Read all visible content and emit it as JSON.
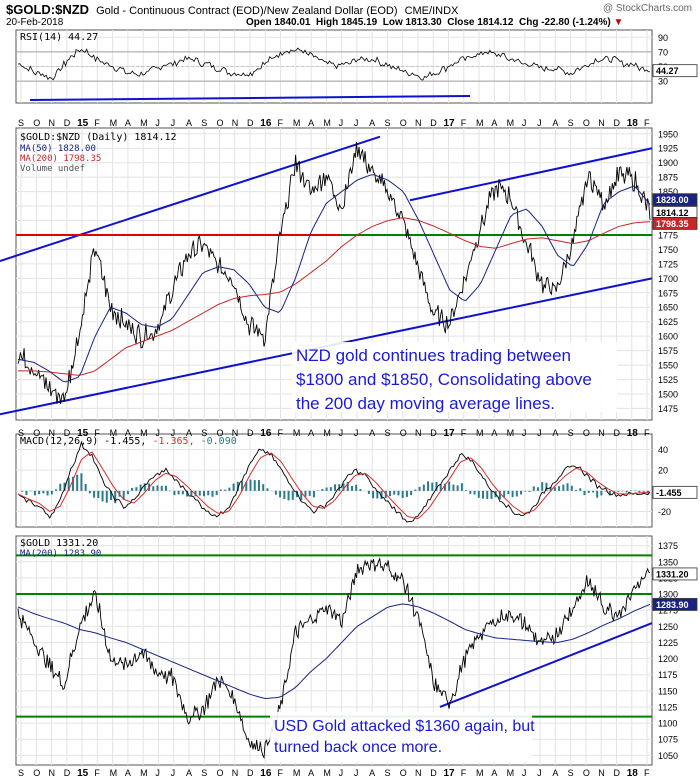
{
  "header": {
    "symbol": "$GOLD:$NZD",
    "description": "Gold - Continuous Contract (EOD)/New Zealand Dollar (EOD)",
    "exchange": "CME/INDX",
    "date": "20-Feb-2018",
    "quote": {
      "open": "Open 1840.01",
      "high": "High 1845.19",
      "low": "Low 1813.30",
      "close": "Close 1814.12",
      "chg": "Chg -22.80 (-1.24%)"
    },
    "watermark": "@ StockCharts.com"
  },
  "colors": {
    "price": "#000000",
    "ma50": "#1a237e",
    "ma200": "#c62828",
    "rsi": "#000000",
    "trend": "#1010d0",
    "support_red": "#e00000",
    "support_green": "#008000",
    "macd_hist": "#2a7b8c",
    "annotation": "#1a1ad6"
  },
  "chart_data": [
    {
      "type": "line",
      "panel": "rsi",
      "title": "RSI(14) 44.27",
      "ylim": [
        0,
        100
      ],
      "yticks": [
        30,
        50,
        70,
        90
      ],
      "current_label": "44.27",
      "series": [
        {
          "name": "RSI(14)",
          "values": [
            55,
            48,
            42,
            38,
            35,
            48,
            62,
            72,
            70,
            60,
            55,
            50,
            45,
            40,
            38,
            42,
            48,
            52,
            55,
            58,
            60,
            56,
            52,
            48,
            44,
            40,
            38,
            42,
            50,
            58,
            66,
            72,
            74,
            70,
            64,
            58,
            52,
            50,
            54,
            58,
            62,
            60,
            55,
            50,
            46,
            42,
            38,
            36,
            40,
            46,
            52,
            58,
            62,
            66,
            70,
            68,
            64,
            60,
            56,
            52,
            50,
            48,
            46,
            44,
            42,
            48,
            54,
            60,
            62,
            58,
            55,
            52,
            48,
            44
          ]
        }
      ]
    },
    {
      "type": "line",
      "panel": "price-nzd",
      "title": "$GOLD:$NZD (Daily) 1814.12",
      "legend": [
        "$GOLD:$NZD (Daily) 1814.12",
        "MA(50) 1828.00",
        "MA(200) 1798.35",
        "Volume undef"
      ],
      "ylim": [
        1455,
        1960
      ],
      "yticks": [
        1475,
        1500,
        1525,
        1550,
        1575,
        1600,
        1625,
        1650,
        1675,
        1700,
        1725,
        1750,
        1775,
        1800,
        1825,
        1850,
        1875,
        1900,
        1925,
        1950
      ],
      "price_labels": [
        "1828.00",
        "1814.12",
        "1798.35"
      ],
      "x": [
        "Sep 2014",
        "Oct 2014",
        "Nov 2014",
        "Dec 2014",
        "Jan 2015",
        "Feb 2015",
        "Mar 2015",
        "Apr 2015",
        "May 2015",
        "Jun 2015",
        "Jul 2015",
        "Aug 2015",
        "Sep 2015",
        "Oct 2015",
        "Nov 2015",
        "Dec 2015",
        "Jan 2016",
        "Feb 2016",
        "Mar 2016",
        "Apr 2016",
        "May 2016",
        "Jun 2016",
        "Jul 2016",
        "Aug 2016",
        "Sep 2016",
        "Oct 2016",
        "Nov 2016",
        "Dec 2016",
        "Jan 2017",
        "Feb 2017",
        "Mar 2017",
        "Apr 2017",
        "May 2017",
        "Jun 2017",
        "Jul 2017",
        "Aug 2017",
        "Sep 2017",
        "Oct 2017",
        "Nov 2017",
        "Dec 2017",
        "Jan 2018",
        "Feb 2018"
      ],
      "series": [
        {
          "name": "$GOLD:$NZD",
          "values": [
            1570,
            1545,
            1510,
            1490,
            1610,
            1755,
            1650,
            1620,
            1600,
            1610,
            1680,
            1740,
            1760,
            1720,
            1700,
            1620,
            1600,
            1770,
            1900,
            1850,
            1880,
            1820,
            1930,
            1880,
            1850,
            1800,
            1720,
            1640,
            1620,
            1700,
            1790,
            1860,
            1840,
            1760,
            1690,
            1680,
            1760,
            1880,
            1830,
            1880,
            1870,
            1814
          ]
        },
        {
          "name": "MA(50) 1828.00",
          "values": [
            1560,
            1555,
            1540,
            1520,
            1530,
            1600,
            1650,
            1640,
            1620,
            1615,
            1630,
            1670,
            1710,
            1720,
            1715,
            1690,
            1650,
            1640,
            1700,
            1780,
            1830,
            1850,
            1870,
            1880,
            1870,
            1850,
            1800,
            1740,
            1680,
            1660,
            1690,
            1750,
            1810,
            1820,
            1790,
            1740,
            1720,
            1760,
            1830,
            1850,
            1860,
            1828
          ]
        },
        {
          "name": "MA(200) 1798.35",
          "values": [
            1540,
            1540,
            1538,
            1535,
            1532,
            1540,
            1560,
            1580,
            1590,
            1600,
            1610,
            1625,
            1640,
            1655,
            1665,
            1670,
            1672,
            1676,
            1690,
            1710,
            1730,
            1755,
            1775,
            1790,
            1800,
            1805,
            1800,
            1790,
            1778,
            1765,
            1755,
            1752,
            1760,
            1768,
            1770,
            1765,
            1760,
            1765,
            1778,
            1790,
            1796,
            1798
          ]
        }
      ],
      "annotation": [
        "NZD gold continues trading between",
        "$1800 and $1850, Consolidating above",
        "the 200 day moving average lines."
      ],
      "support_level": 1775
    },
    {
      "type": "line",
      "panel": "macd",
      "title": "MACD(12,26,9) -1.455, -1.365, -0.090",
      "legend": [
        "MACD(12,26,9) -1.455",
        "-1.365",
        "-0.090"
      ],
      "ylim": [
        -35,
        55
      ],
      "yticks": [
        -20,
        0,
        20,
        40
      ],
      "current_label": "-1.455",
      "series": [
        {
          "name": "MACD(12,26,9) -1.455",
          "values": [
            -5,
            -10,
            -15,
            -25,
            -10,
            20,
            45,
            35,
            10,
            -5,
            -15,
            -10,
            5,
            15,
            20,
            10,
            0,
            -10,
            -20,
            -25,
            -15,
            5,
            25,
            40,
            35,
            20,
            5,
            -10,
            -20,
            -15,
            -5,
            10,
            20,
            15,
            0,
            -10,
            -20,
            -30,
            -25,
            -10,
            5,
            20,
            35,
            30,
            15,
            0,
            -10,
            -20,
            -25,
            -15,
            0,
            10,
            20,
            25,
            15,
            5,
            0,
            -5,
            -3,
            -2,
            -1
          ]
        },
        {
          "name": "-1.365",
          "values": [
            -3,
            -8,
            -12,
            -20,
            -15,
            5,
            30,
            38,
            22,
            5,
            -8,
            -12,
            -2,
            10,
            17,
            14,
            5,
            -5,
            -15,
            -22,
            -20,
            -5,
            15,
            32,
            37,
            28,
            12,
            -3,
            -15,
            -17,
            -10,
            3,
            15,
            17,
            8,
            -4,
            -15,
            -25,
            -27,
            -17,
            -2,
            12,
            28,
            32,
            22,
            7,
            -5,
            -15,
            -22,
            -19,
            -7,
            5,
            15,
            22,
            18,
            9,
            2,
            -3,
            -3,
            -2,
            -1
          ]
        }
      ]
    },
    {
      "type": "line",
      "panel": "price-usd",
      "title": "$GOLD 1331.20",
      "legend": [
        "$GOLD 1331.20",
        "MA(200) 1283.90"
      ],
      "ylim": [
        1035,
        1390
      ],
      "yticks": [
        1050,
        1075,
        1100,
        1125,
        1150,
        1175,
        1200,
        1225,
        1250,
        1275,
        1300,
        1325,
        1350,
        1375
      ],
      "price_labels": [
        "1331.20",
        "1283.90"
      ],
      "series": [
        {
          "name": "$GOLD",
          "values": [
            1270,
            1230,
            1190,
            1160,
            1250,
            1300,
            1200,
            1190,
            1210,
            1180,
            1170,
            1110,
            1120,
            1170,
            1140,
            1070,
            1060,
            1120,
            1240,
            1260,
            1280,
            1260,
            1340,
            1350,
            1340,
            1320,
            1260,
            1160,
            1130,
            1200,
            1240,
            1260,
            1270,
            1250,
            1220,
            1240,
            1280,
            1320,
            1280,
            1270,
            1310,
            1331
          ]
        },
        {
          "name": "MA(200) 1283.90",
          "values": [
            1280,
            1270,
            1262,
            1255,
            1245,
            1240,
            1232,
            1225,
            1215,
            1205,
            1195,
            1185,
            1175,
            1165,
            1155,
            1145,
            1138,
            1140,
            1155,
            1180,
            1200,
            1225,
            1250,
            1265,
            1280,
            1285,
            1280,
            1270,
            1258,
            1245,
            1238,
            1232,
            1230,
            1228,
            1226,
            1225,
            1230,
            1240,
            1252,
            1262,
            1274,
            1284
          ]
        }
      ],
      "annotation": [
        "USD Gold attacked $1360 again, but",
        "turned back once more."
      ],
      "resistance_level": 1360,
      "support_levels": [
        1300,
        1110
      ]
    }
  ],
  "xaxis": {
    "months": [
      "S",
      "O",
      "N",
      "D",
      "15",
      "F",
      "M",
      "A",
      "M",
      "J",
      "J",
      "A",
      "S",
      "O",
      "N",
      "D",
      "16",
      "F",
      "M",
      "A",
      "M",
      "J",
      "J",
      "A",
      "S",
      "O",
      "N",
      "D",
      "17",
      "F",
      "M",
      "A",
      "M",
      "J",
      "J",
      "A",
      "S",
      "O",
      "N",
      "D",
      "18",
      "F"
    ]
  }
}
